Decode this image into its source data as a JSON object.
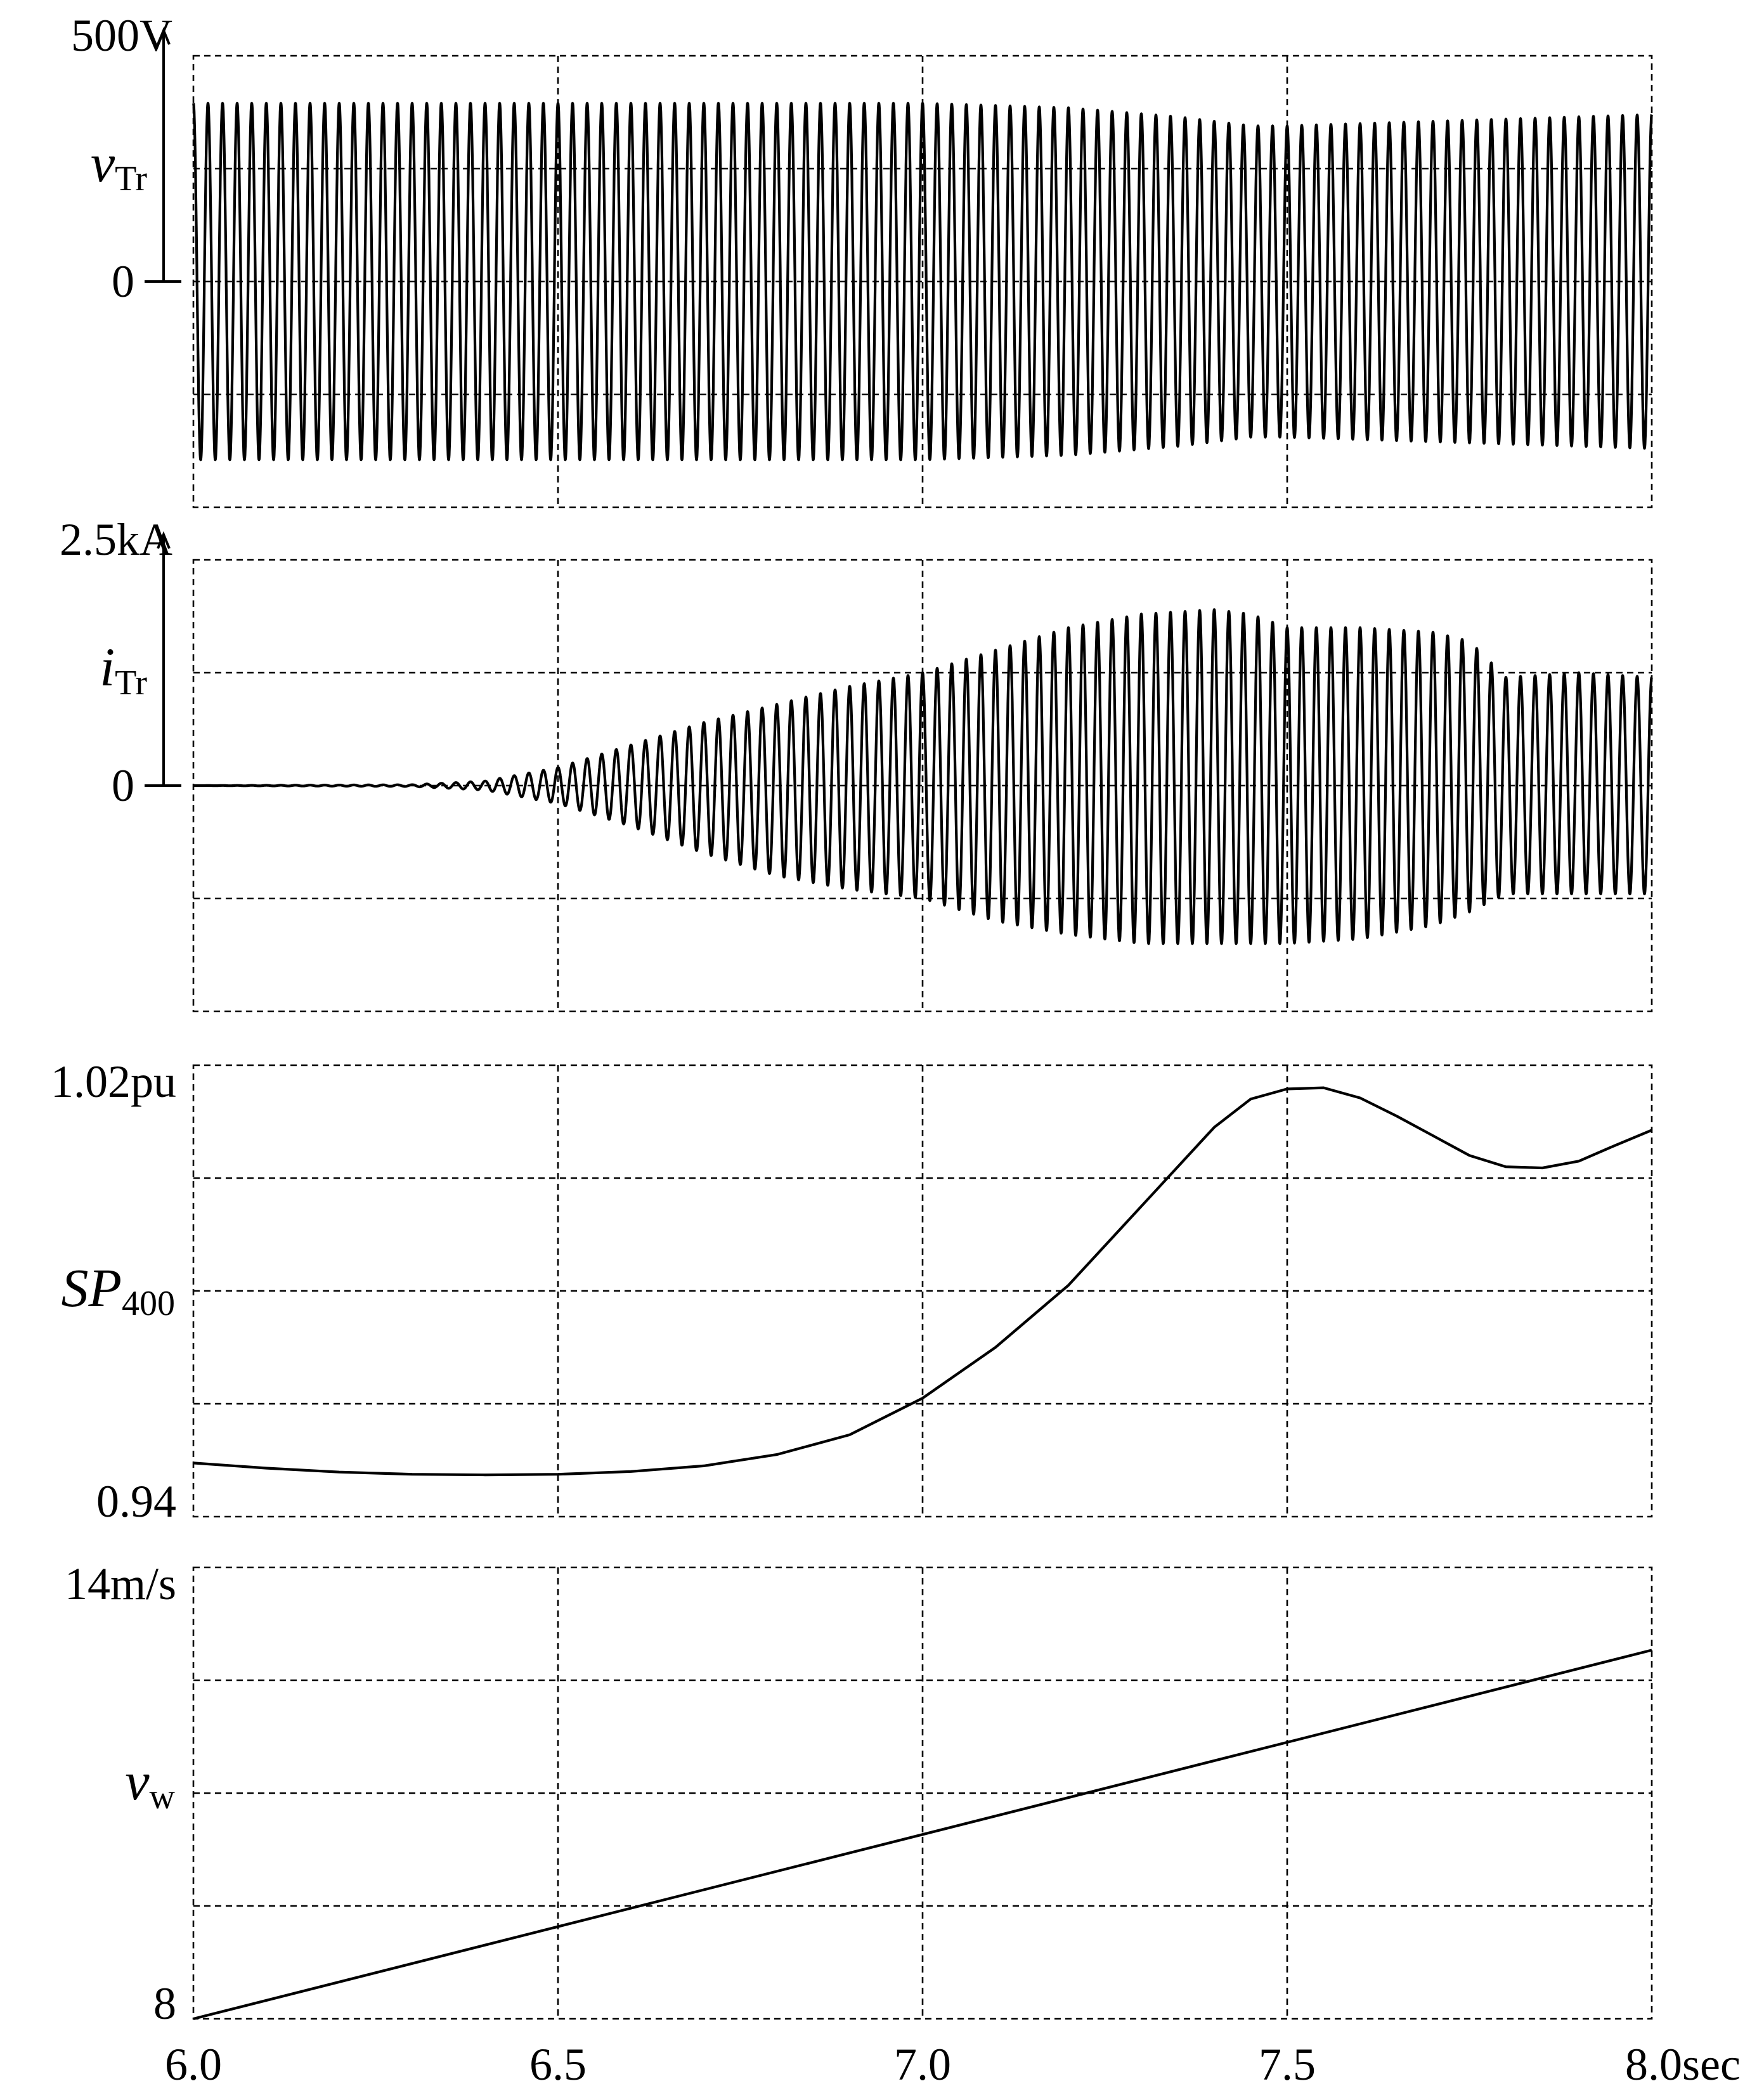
{
  "chart_data": [
    {
      "type": "line",
      "id": "vTr",
      "symbol": "v",
      "subscript": "Tr",
      "ytop_label": "500V",
      "yzero_label": "0",
      "ylim": [
        -500,
        500
      ],
      "xlim": [
        6.0,
        8.0
      ],
      "frequency_hz": 50,
      "envelope": {
        "t": [
          6.0,
          6.5,
          7.0,
          7.2,
          7.35,
          7.45,
          7.5,
          7.7,
          8.0
        ],
        "pos": [
          395,
          395,
          395,
          385,
          365,
          345,
          345,
          355,
          370
        ],
        "neg": [
          -395,
          -395,
          -395,
          -385,
          -365,
          -345,
          -345,
          -355,
          -370
        ]
      },
      "grid": true
    },
    {
      "type": "line",
      "id": "iTr",
      "symbol": "i",
      "subscript": "Tr",
      "ytop_label": "2.5kA",
      "yzero_label": "0",
      "ylim": [
        -2.5,
        2.5
      ],
      "xlim": [
        6.0,
        8.0
      ],
      "frequency_hz": 50,
      "envelope": {
        "t": [
          6.0,
          6.3,
          6.4,
          6.5,
          6.6,
          6.7,
          6.8,
          6.9,
          7.0,
          7.1,
          7.2,
          7.3,
          7.4,
          7.45,
          7.5,
          7.6,
          7.7,
          7.75,
          7.8,
          7.9,
          8.0
        ],
        "pos": [
          0.0,
          0.01,
          0.05,
          0.2,
          0.45,
          0.7,
          0.9,
          1.1,
          1.25,
          1.5,
          1.75,
          1.9,
          1.95,
          1.9,
          1.75,
          1.75,
          1.7,
          1.6,
          1.2,
          1.25,
          1.2
        ],
        "neg": [
          0.0,
          -0.01,
          -0.05,
          -0.2,
          -0.45,
          -0.75,
          -1.0,
          -1.15,
          -1.25,
          -1.5,
          -1.65,
          -1.75,
          -1.75,
          -1.75,
          -1.75,
          -1.7,
          -1.55,
          -1.4,
          -1.2,
          -1.2,
          -1.2
        ]
      },
      "grid": true
    },
    {
      "type": "line",
      "id": "SP400",
      "symbol": "SP",
      "subscript": "400",
      "ytop_label": "1.02pu",
      "ybottom_label": "0.94",
      "ylim": [
        0.94,
        1.02
      ],
      "xlim": [
        6.0,
        8.0
      ],
      "x": [
        6.0,
        6.1,
        6.2,
        6.3,
        6.4,
        6.5,
        6.6,
        6.7,
        6.8,
        6.9,
        7.0,
        7.1,
        7.2,
        7.3,
        7.4,
        7.45,
        7.5,
        7.55,
        7.6,
        7.65,
        7.7,
        7.75,
        7.8,
        7.85,
        7.9,
        7.95,
        8.0
      ],
      "y": [
        0.9495,
        0.9486,
        0.9479,
        0.9475,
        0.9474,
        0.9475,
        0.948,
        0.949,
        0.951,
        0.9545,
        0.961,
        0.97,
        0.981,
        0.995,
        1.009,
        1.014,
        1.0158,
        1.016,
        1.0142,
        1.011,
        1.0075,
        1.004,
        1.002,
        1.0018,
        1.003,
        1.0058,
        1.0085
      ],
      "grid": true
    },
    {
      "type": "line",
      "id": "vw",
      "symbol": "v",
      "subscript": "w",
      "ytop_label": "14m/s",
      "ybottom_label": "8",
      "ylim": [
        8,
        14
      ],
      "xlim": [
        6.0,
        8.0
      ],
      "x": [
        6.0,
        8.0
      ],
      "y": [
        8.0,
        12.9
      ],
      "grid": true
    }
  ],
  "x_ticks": [
    "6.0",
    "6.5",
    "7.0",
    "7.5",
    "8.0sec"
  ]
}
